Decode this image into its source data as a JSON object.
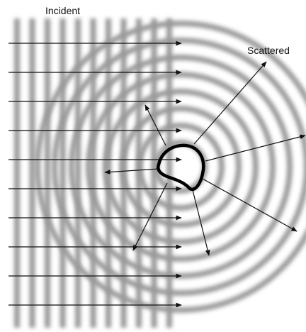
{
  "labels": {
    "incident": "Incident",
    "scattered": "Scattered"
  }
}
